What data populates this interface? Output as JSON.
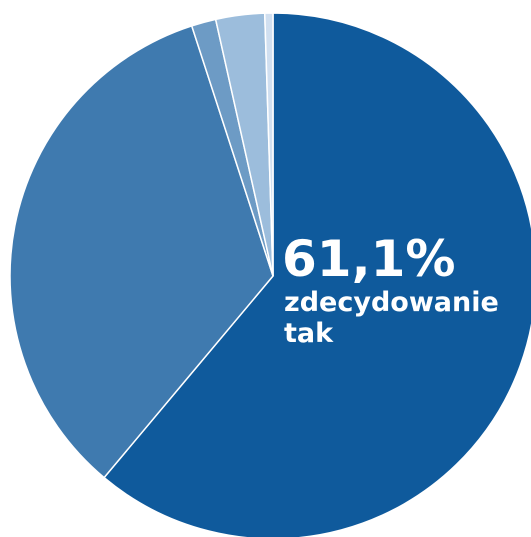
{
  "chart_data": {
    "type": "pie",
    "start": "12 o'clock",
    "direction": "clockwise",
    "slices": [
      {
        "value": 61.1,
        "color": "#0f5a9c"
      },
      {
        "value": 33.9,
        "color": "#3f7aaf"
      },
      {
        "value": 1.5,
        "color": "#6d9bc5"
      },
      {
        "value": 3.0,
        "color": "#9cbddc"
      },
      {
        "value": 0.5,
        "color": "#d0dff0"
      }
    ],
    "annotation": {
      "value": "61,1%",
      "lines": [
        "zdecydowanie",
        "tak"
      ]
    }
  }
}
